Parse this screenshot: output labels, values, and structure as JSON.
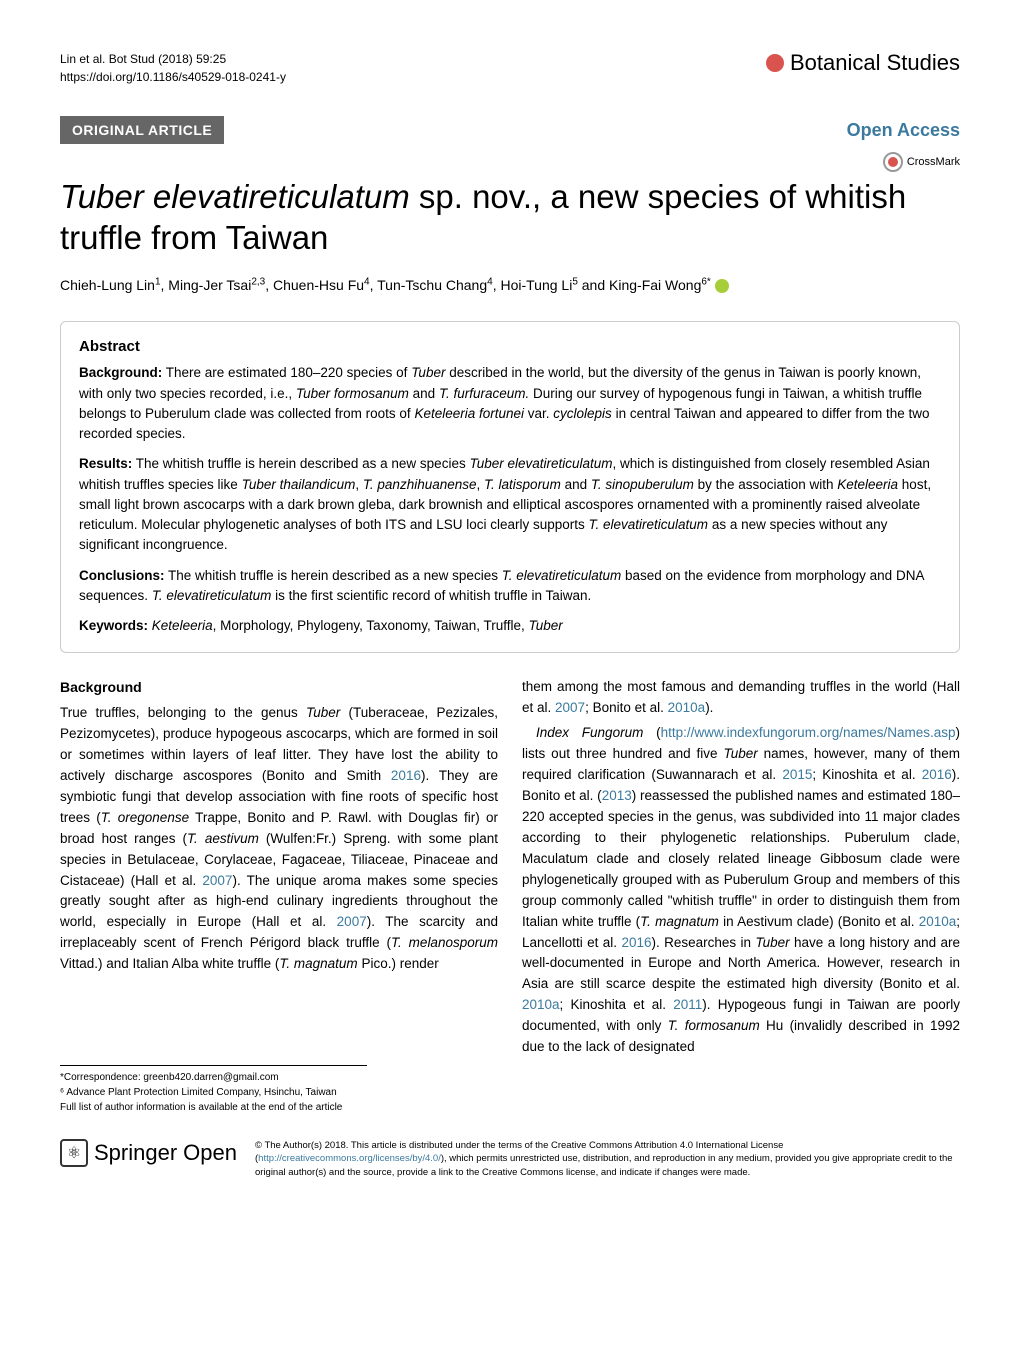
{
  "header": {
    "citation": "Lin et al. Bot Stud  (2018) 59:25",
    "doi": "https://doi.org/10.1186/s40529-018-0241-y",
    "journal": "Botanical Studies"
  },
  "article_bar": {
    "type": "ORIGINAL ARTICLE",
    "open_access": "Open Access",
    "crossmark": "CrossMark"
  },
  "title": {
    "html": "<em>Tuber elevatireticulatum</em> sp. nov., a new species of whitish truffle from Taiwan"
  },
  "authors": {
    "html": "Chieh-Lung Lin<sup>1</sup>, Ming-Jer Tsai<sup>2,3</sup>, Chuen-Hsu Fu<sup>4</sup>, Tun-Tschu Chang<sup>4</sup>, Hoi-Tung Li<sup>5</sup> and King-Fai Wong<sup>6*</sup>"
  },
  "abstract": {
    "title": "Abstract",
    "background": {
      "label": "Background:",
      "text": "There are estimated 180–220 species of <em>Tuber</em> described in the world, but the diversity of the genus in Taiwan is poorly known, with only two species recorded, i.e., <em>Tuber formosanum</em> and <em>T. furfuraceum.</em> During our survey of hypogenous fungi in Taiwan, a whitish truffle belongs to Puberulum clade was collected from roots of <em>Keteleeria fortunei</em> var. <em>cyclolepis</em> in central Taiwan and appeared to differ from the two recorded species."
    },
    "results": {
      "label": "Results:",
      "text": "The whitish truffle is herein described as a new species <em>Tuber elevatireticulatum</em>, which is distinguished from closely resembled Asian whitish truffles species like <em>Tuber thailandicum</em>, <em>T. panzhihuanense</em>, <em>T. latisporum</em> and <em>T. sinopuberulum</em> by the association with <em>Keteleeria</em> host, small light brown ascocarps with a dark brown gleba, dark brownish and elliptical ascospores ornamented with a prominently raised alveolate reticulum. Molecular phylogenetic analyses of both ITS and LSU loci clearly supports <em>T. elevatireticulatum</em> as a new species without any significant incongruence."
    },
    "conclusions": {
      "label": "Conclusions:",
      "text": "The whitish truffle is herein described as a new species <em>T. elevatireticulatum</em> based on the evidence from morphology and DNA sequences. <em>T. elevatireticulatum</em> is the first scientific record of whitish truffle in Taiwan."
    },
    "keywords": {
      "label": "Keywords:",
      "text": "<em>Keteleeria</em>, Morphology, Phylogeny, Taxonomy, Taiwan, Truffle, <em>Tuber</em>"
    }
  },
  "body": {
    "heading": "Background",
    "col1": "True truffles, belonging to the genus <em>Tuber</em> (Tuberaceae, Pezizales, Pezizomycetes), produce hypogeous ascocarps, which are formed in soil or sometimes within layers of leaf litter. They have lost the ability to actively discharge ascospores (Bonito and Smith <span class='link'>2016</span>). They are symbiotic fungi that develop association with fine roots of specific host trees (<em>T. oregonense</em> Trappe, Bonito and P. Rawl. with Douglas fir) or broad host ranges (<em>T. aestivum</em> (Wulfen:Fr.) Spreng. with some plant species in Betulaceae, Corylaceae, Fagaceae, Tiliaceae, Pinaceae and Cistaceae) (Hall et al. <span class='link'>2007</span>). The unique aroma makes some species greatly sought after as high-end culinary ingredients throughout the world, especially in Europe (Hall et al. <span class='link'>2007</span>). The scarcity and irreplaceably scent of French Périgord black truffle (<em>T. melanosporum</em> Vittad.) and Italian Alba white truffle (<em>T. magnatum</em> Pico.) render",
    "col2_p1": "them among the most famous and demanding truffles in the world (Hall et al. <span class='link'>2007</span>; Bonito et al. <span class='link'>2010a</span>).",
    "col2_p2": "<em>Index Fungorum</em> (<span class='link'>http://www.indexfungorum.org/names/Names.asp</span>) lists out three hundred and five <em>Tuber</em> names, however, many of them required clarification (Suwannarach et al. <span class='link'>2015</span>; Kinoshita et al. <span class='link'>2016</span>). Bonito et al. (<span class='link'>2013</span>) reassessed the published names and estimated 180–220 accepted species in the genus, was subdivided into 11 major clades according to their phylogenetic relationships. Puberulum clade, Maculatum clade and closely related lineage Gibbosum clade were phylogenetically grouped with as Puberulum Group and members of this group commonly called \"whitish truffle\" in order to distinguish them from Italian white truffle (<em>T. magnatum</em> in Aestivum clade) (Bonito et al. <span class='link'>2010a</span>; Lancellotti et al. <span class='link'>2016</span>). Researches in <em>Tuber</em> have a long history and are well-documented in Europe and North America. However, research in Asia are still scarce despite the estimated high diversity (Bonito et al. <span class='link'>2010a</span>; Kinoshita et al. <span class='link'>2011</span>). Hypogeous fungi in Taiwan are poorly documented, with only <em>T. formosanum</em> Hu (invalidly described in 1992 due to the lack of designated"
  },
  "correspondence": {
    "line1": "*Correspondence:  greenb420.darren@gmail.com",
    "line2": "⁶ Advance Plant Protection Limited Company, Hsinchu, Taiwan",
    "line3": "Full list of author information is available at the end of the article"
  },
  "footer": {
    "springer": "Springer",
    "open": "Open",
    "license": "© The Author(s) 2018. This article is distributed under the terms of the Creative Commons Attribution 4.0 International License (<span class='link'>http://creativecommons.org/licenses/by/4.0/</span>), which permits unrestricted use, distribution, and reproduction in any medium, provided you give appropriate credit to the original author(s) and the source, provide a link to the Creative Commons license, and indicate if changes were made."
  },
  "colors": {
    "accent_blue": "#3b7a9e",
    "article_type_bg": "#666666",
    "orcid": "#a6ce39",
    "red": "#d9534f",
    "border": "#cccccc"
  }
}
